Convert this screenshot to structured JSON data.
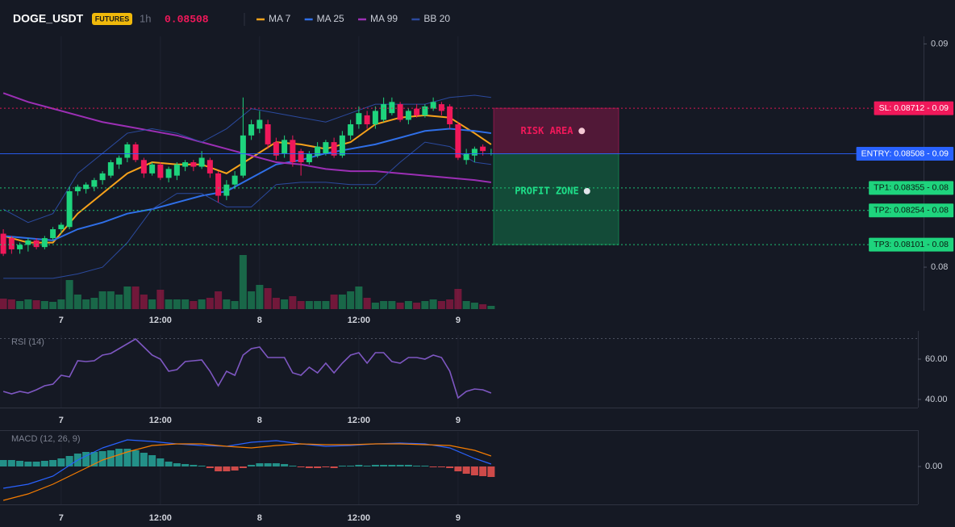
{
  "header": {
    "symbol": "DOGE_USDT",
    "badge": "FUTURES",
    "interval": "1h",
    "price": 0.08508
  },
  "chart_data": [
    {
      "type": "candlestick",
      "x": [
        -7,
        -6,
        -5,
        -4,
        -3,
        -2,
        -1,
        0,
        1,
        2,
        3,
        4,
        5,
        6,
        7,
        8,
        9,
        10,
        11,
        12,
        13,
        14,
        15,
        16,
        17,
        18,
        19,
        20,
        21,
        22,
        23,
        24,
        25,
        26,
        27,
        28,
        29,
        30,
        31,
        32,
        33,
        34,
        35,
        36,
        37,
        38,
        39,
        40,
        41,
        42,
        43,
        44,
        45,
        46,
        47,
        48,
        49,
        50,
        51,
        52
      ],
      "open": [
        0.0815,
        0.0813,
        0.0808,
        0.081,
        0.0812,
        0.0809,
        0.0813,
        0.0817,
        0.0818,
        0.0834,
        0.0835,
        0.0836,
        0.0839,
        0.0841,
        0.0846,
        0.0849,
        0.0855,
        0.0848,
        0.0842,
        0.0846,
        0.084,
        0.0841,
        0.0845,
        0.0847,
        0.0845,
        0.0848,
        0.0842,
        0.0832,
        0.0837,
        0.0841,
        0.0859,
        0.0862,
        0.0864,
        0.0856,
        0.0851,
        0.0857,
        0.0852,
        0.0847,
        0.085,
        0.0851,
        0.0856,
        0.085,
        0.0859,
        0.0864,
        0.0868,
        0.0864,
        0.0866,
        0.0869,
        0.0873,
        0.0866,
        0.0871,
        0.0868,
        0.0871,
        0.0873,
        0.0872,
        0.0864,
        0.0848,
        0.085,
        0.0854,
        0.0851
      ],
      "high": [
        0.0817,
        0.0814,
        0.0811,
        0.0813,
        0.0813,
        0.0814,
        0.0818,
        0.082,
        0.0836,
        0.0837,
        0.0838,
        0.084,
        0.0843,
        0.0848,
        0.085,
        0.0856,
        0.0856,
        0.0849,
        0.0847,
        0.0847,
        0.0845,
        0.0847,
        0.0848,
        0.0848,
        0.0852,
        0.0849,
        0.0843,
        0.0839,
        0.0843,
        0.0876,
        0.0866,
        0.087,
        0.0866,
        0.0858,
        0.0859,
        0.0859,
        0.0853,
        0.0852,
        0.0856,
        0.0857,
        0.0858,
        0.0861,
        0.0866,
        0.0872,
        0.087,
        0.0872,
        0.0876,
        0.0876,
        0.0874,
        0.0871,
        0.0873,
        0.0873,
        0.0876,
        0.0874,
        0.0873,
        0.0865,
        0.0853,
        0.0854,
        0.0855,
        0.0853
      ],
      "low": [
        0.0805,
        0.0806,
        0.0806,
        0.0807,
        0.0808,
        0.0808,
        0.0812,
        0.0815,
        0.0817,
        0.0832,
        0.0833,
        0.0834,
        0.0837,
        0.084,
        0.0844,
        0.0847,
        0.0847,
        0.084,
        0.0841,
        0.0839,
        0.0838,
        0.0839,
        0.0843,
        0.0843,
        0.0844,
        0.084,
        0.0829,
        0.083,
        0.0835,
        0.084,
        0.0857,
        0.086,
        0.0853,
        0.0848,
        0.0849,
        0.0845,
        0.0841,
        0.0846,
        0.0849,
        0.085,
        0.0849,
        0.0849,
        0.0857,
        0.0862,
        0.0862,
        0.0862,
        0.0865,
        0.0868,
        0.0865,
        0.0864,
        0.0867,
        0.0867,
        0.087,
        0.0868,
        0.0862,
        0.0848,
        0.0846,
        0.0847,
        0.085,
        0.085
      ],
      "close": [
        0.0806,
        0.0808,
        0.081,
        0.0812,
        0.0809,
        0.0813,
        0.0817,
        0.0819,
        0.0834,
        0.0836,
        0.0837,
        0.0839,
        0.0842,
        0.0847,
        0.0849,
        0.0855,
        0.0848,
        0.0842,
        0.0846,
        0.084,
        0.0844,
        0.0846,
        0.0847,
        0.0845,
        0.0849,
        0.0842,
        0.0832,
        0.0837,
        0.0841,
        0.0859,
        0.0864,
        0.0866,
        0.0855,
        0.085,
        0.0857,
        0.0847,
        0.0847,
        0.0851,
        0.0854,
        0.0856,
        0.085,
        0.0859,
        0.0864,
        0.0869,
        0.0864,
        0.087,
        0.0873,
        0.0874,
        0.0866,
        0.087,
        0.0868,
        0.0872,
        0.0874,
        0.087,
        0.0864,
        0.0849,
        0.0851,
        0.0853,
        0.0852,
        0.0851
      ],
      "volume": [
        13,
        12,
        10,
        12,
        11,
        10,
        9,
        12,
        36,
        18,
        12,
        14,
        22,
        22,
        18,
        28,
        28,
        18,
        12,
        24,
        12,
        12,
        12,
        10,
        12,
        14,
        22,
        12,
        10,
        67,
        22,
        30,
        26,
        14,
        12,
        16,
        10,
        10,
        10,
        10,
        18,
        18,
        22,
        28,
        14,
        8,
        10,
        10,
        8,
        10,
        8,
        10,
        12,
        10,
        12,
        25,
        10,
        8,
        6,
        4
      ],
      "up_color": "#1ed47d",
      "down_color": "#f0185a",
      "xlim": [
        -7.4,
        104.3
      ],
      "xticks": [
        {
          "value": 0,
          "label": "7"
        },
        {
          "value": 12,
          "label": "12:00"
        },
        {
          "value": 24,
          "label": "8"
        },
        {
          "value": 36,
          "label": "12:00"
        },
        {
          "value": 48,
          "label": "9"
        }
      ],
      "ylim": [
        0.07805,
        0.09034
      ],
      "yticks": [
        0.09,
        0.08
      ],
      "grid": true,
      "series": [
        {
          "name": "MA 7",
          "color": "#f7a21b",
          "x": [
            -7,
            -4,
            -1,
            2,
            5,
            8,
            11,
            14,
            17,
            20,
            23,
            26,
            29,
            32,
            35,
            38,
            41,
            44,
            47,
            50,
            52
          ],
          "values": [
            0.0814,
            0.0811,
            0.0811,
            0.0824,
            0.0833,
            0.0842,
            0.0847,
            0.0846,
            0.0846,
            0.0842,
            0.0849,
            0.0856,
            0.0855,
            0.0853,
            0.0856,
            0.0864,
            0.0867,
            0.0868,
            0.0867,
            0.086,
            0.0855
          ]
        },
        {
          "name": "MA 25",
          "color": "#2f6fe8",
          "x": [
            -7,
            -4,
            -1,
            2,
            5,
            8,
            11,
            14,
            17,
            20,
            23,
            26,
            29,
            32,
            35,
            38,
            41,
            44,
            47,
            50,
            52
          ],
          "values": [
            0.0814,
            0.0813,
            0.0812,
            0.0817,
            0.082,
            0.0824,
            0.0826,
            0.0829,
            0.0832,
            0.0834,
            0.084,
            0.0846,
            0.0848,
            0.0851,
            0.0853,
            0.0855,
            0.0858,
            0.0861,
            0.0862,
            0.0861,
            0.086
          ]
        },
        {
          "name": "MA 99",
          "color": "#9c2fb5",
          "x": [
            -7,
            -4,
            -1,
            2,
            5,
            8,
            11,
            14,
            17,
            20,
            23,
            26,
            29,
            32,
            35,
            38,
            41,
            44,
            47,
            50,
            52
          ],
          "values": [
            0.0878,
            0.0874,
            0.0871,
            0.0868,
            0.0865,
            0.0863,
            0.0861,
            0.0859,
            0.0856,
            0.0853,
            0.085,
            0.0847,
            0.0846,
            0.0844,
            0.0843,
            0.0843,
            0.0842,
            0.0841,
            0.084,
            0.0839,
            0.0838
          ]
        },
        {
          "name": "BB 20",
          "color": "#2b4a9e",
          "x": [
            -7,
            -4,
            -1,
            2,
            5,
            8,
            11,
            14,
            17,
            20,
            23,
            26,
            29,
            32,
            35,
            38,
            41,
            44,
            47,
            50,
            52
          ],
          "upper": [
            0.0826,
            0.082,
            0.0824,
            0.0842,
            0.0851,
            0.086,
            0.0862,
            0.086,
            0.0856,
            0.0862,
            0.0871,
            0.0869,
            0.0867,
            0.0865,
            0.0869,
            0.0873,
            0.0873,
            0.0873,
            0.0876,
            0.0877,
            0.0876
          ],
          "lower": [
            0.0795,
            0.0795,
            0.0795,
            0.0797,
            0.08,
            0.0811,
            0.0826,
            0.0833,
            0.0833,
            0.0827,
            0.0827,
            0.0837,
            0.0838,
            0.0838,
            0.0837,
            0.0837,
            0.0847,
            0.0856,
            0.0854,
            0.0847,
            0.0846
          ]
        }
      ],
      "levels": [
        {
          "label": "SL: 0.08712 - 0.09",
          "value": 0.08712,
          "color": "#f0185a",
          "text_color": "#ffffff",
          "line_style": "dotted"
        },
        {
          "label": "ENTRY: 0.08508 - 0.09",
          "value": 0.08508,
          "color": "#2962ff",
          "text_color": "#ffffff",
          "line_style": "solid"
        },
        {
          "label": "TP1: 0.08355 - 0.08",
          "value": 0.08355,
          "color": "#1ed47d",
          "text_color": "#0b1a12",
          "line_style": "dotted"
        },
        {
          "label": "TP2: 0.08254 - 0.08",
          "value": 0.08254,
          "color": "#1ed47d",
          "text_color": "#0b1a12",
          "line_style": "dotted"
        },
        {
          "label": "TP3: 0.08101 - 0.08",
          "value": 0.08101,
          "color": "#1ed47d",
          "text_color": "#0b1a12",
          "line_style": "dotted"
        }
      ],
      "zones": [
        {
          "label": "RISK AREA",
          "from": 0.08712,
          "to": 0.08508,
          "color": "#c2185b",
          "text_color": "#f0185a"
        },
        {
          "label": "PROFIT ZONE",
          "from": 0.08508,
          "to": 0.08101,
          "color": "#12a85e",
          "text_color": "#1ee08a"
        }
      ]
    },
    {
      "type": "line",
      "title": "RSI (14)",
      "color": "#7e57c2",
      "x": [
        -7,
        -6,
        -5,
        -4,
        -3,
        -2,
        -1,
        0,
        1,
        2,
        3,
        4,
        5,
        6,
        7,
        8,
        9,
        10,
        11,
        12,
        13,
        14,
        15,
        16,
        17,
        18,
        19,
        20,
        21,
        22,
        23,
        24,
        25,
        26,
        27,
        28,
        29,
        30,
        31,
        32,
        33,
        34,
        35,
        36,
        37,
        38,
        39,
        40,
        41,
        42,
        43,
        44,
        45,
        46,
        47,
        48,
        49,
        50,
        51,
        52
      ],
      "values": [
        44,
        42.8,
        44,
        43.2,
        44.8,
        46.8,
        47.6,
        52,
        51.2,
        59.2,
        58.8,
        59.2,
        62,
        62.8,
        65.2,
        67.6,
        70,
        66,
        62,
        60,
        54,
        54.8,
        58.8,
        59.2,
        59.6,
        54,
        46.8,
        54,
        52,
        62,
        65.2,
        66,
        60.8,
        60.8,
        60.8,
        53.2,
        52,
        56,
        53.2,
        58,
        53.2,
        58,
        62,
        63.2,
        58,
        63.2,
        63.2,
        58.8,
        58,
        60.8,
        60.8,
        60,
        62,
        60.8,
        54,
        40.8,
        44,
        45.2,
        44.8,
        43.2
      ],
      "xlim": [
        -7.4,
        104.3
      ],
      "xticks": [
        {
          "value": 0,
          "label": "7"
        },
        {
          "value": 12,
          "label": "12:00"
        },
        {
          "value": 24,
          "label": "8"
        },
        {
          "value": 36,
          "label": "12:00"
        },
        {
          "value": 48,
          "label": "9"
        }
      ],
      "ylim": [
        36,
        72
      ],
      "yticks": [
        {
          "value": 60,
          "label": "60.00"
        },
        {
          "value": 40,
          "label": "40.00"
        }
      ],
      "grid": true
    },
    {
      "type": "macd",
      "title": "MACD (12, 26, 9)",
      "x": [
        -7,
        -6,
        -5,
        -4,
        -3,
        -2,
        -1,
        0,
        1,
        2,
        3,
        4,
        5,
        6,
        7,
        8,
        9,
        10,
        11,
        12,
        13,
        14,
        15,
        16,
        17,
        18,
        19,
        20,
        21,
        22,
        23,
        24,
        25,
        26,
        27,
        28,
        29,
        30,
        31,
        32,
        33,
        34,
        35,
        36,
        37,
        38,
        39,
        40,
        41,
        42,
        43,
        44,
        45,
        46,
        47,
        48,
        49,
        50,
        51,
        52
      ],
      "histogram": [
        8e-05,
        8e-05,
        7e-05,
        6e-05,
        6e-05,
        7e-05,
        8e-05,
        0.0001,
        0.00013,
        0.00016,
        0.00018,
        0.00018,
        0.00019,
        0.0002,
        0.00022,
        0.00022,
        0.0002,
        0.00017,
        0.00014,
        0.0001,
        6e-05,
        4e-05,
        3e-05,
        2e-05,
        1e-05,
        -2e-05,
        -6e-05,
        -6e-05,
        -5e-05,
        -2e-05,
        2e-05,
        4e-05,
        4e-05,
        4e-05,
        3e-05,
        1e-05,
        -1e-05,
        -2e-05,
        -2e-05,
        -1e-05,
        -2e-05,
        1e-05,
        1e-05,
        2e-05,
        1e-05,
        2e-05,
        2e-05,
        2e-05,
        2e-05,
        2e-05,
        1e-05,
        1e-05,
        -1e-05,
        -1e-05,
        -2e-05,
        -6e-05,
        -9e-05,
        -0.00011,
        -0.00012,
        -0.00013
      ],
      "up_color": "#26a69a",
      "down_color": "#ef5350",
      "series": [
        {
          "color": "#2962ff",
          "x": [
            -7,
            -4,
            -1,
            2,
            5,
            8,
            11,
            14,
            17,
            20,
            23,
            26,
            29,
            32,
            35,
            38,
            41,
            44,
            47,
            50,
            52
          ],
          "values": [
            -0.00027,
            -0.00022,
            -0.00012,
            8e-05,
            0.00023,
            0.00033,
            0.00031,
            0.00028,
            0.00026,
            0.00025,
            0.0003,
            0.00032,
            0.00028,
            0.00025,
            0.00026,
            0.00028,
            0.00029,
            0.00028,
            0.00023,
            0.0001,
            3e-05
          ]
        },
        {
          "color": "#f57c00",
          "x": [
            -7,
            -4,
            -1,
            2,
            5,
            8,
            11,
            14,
            17,
            20,
            23,
            26,
            29,
            32,
            35,
            38,
            41,
            44,
            47,
            50,
            52
          ],
          "values": [
            -0.00042,
            -0.00034,
            -0.00022,
            -7e-05,
            8e-05,
            0.00018,
            0.00026,
            0.00028,
            0.00028,
            0.00025,
            0.00023,
            0.00026,
            0.00028,
            0.00027,
            0.00027,
            0.00028,
            0.00028,
            0.00027,
            0.00026,
            0.0002,
            0.00013
          ]
        }
      ],
      "xlim": [
        -7.4,
        104.3
      ],
      "xticks": [
        {
          "value": 0,
          "label": "7"
        },
        {
          "value": 12,
          "label": "12:00"
        },
        {
          "value": 24,
          "label": "8"
        },
        {
          "value": 36,
          "label": "12:00"
        },
        {
          "value": 48,
          "label": "9"
        }
      ],
      "ylim": [
        -0.00047,
        0.00043
      ],
      "yticks": [
        {
          "value": 0,
          "label": "0.00"
        }
      ],
      "grid": true
    }
  ]
}
